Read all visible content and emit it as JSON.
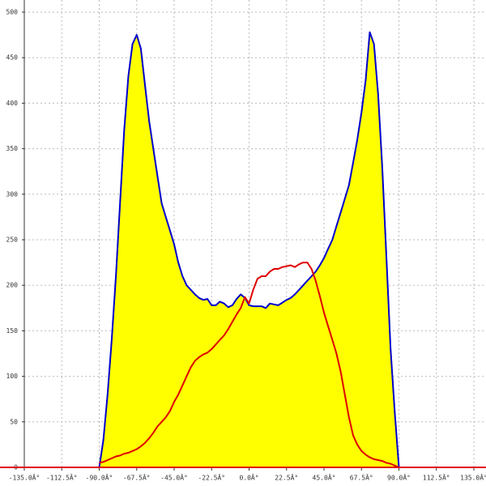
{
  "chart_data": {
    "type": "area-line",
    "x": [
      -90,
      -87.5,
      -85,
      -82.5,
      -80,
      -77.5,
      -75,
      -72.5,
      -70,
      -67.5,
      -65,
      -62.5,
      -60,
      -57.5,
      -55,
      -52.5,
      -50,
      -47.5,
      -45,
      -42.5,
      -40,
      -37.5,
      -35,
      -32.5,
      -30,
      -27.5,
      -25,
      -22.5,
      -20,
      -17.5,
      -15,
      -12.5,
      -10,
      -7.5,
      -5,
      -2.5,
      0,
      2.5,
      5,
      7.5,
      10,
      12.5,
      15,
      17.5,
      20,
      22.5,
      25,
      27.5,
      30,
      32.5,
      35,
      37.5,
      40,
      42.5,
      45,
      47.5,
      50,
      52.5,
      55,
      57.5,
      60,
      62.5,
      65,
      67.5,
      70,
      72.5,
      75,
      77.5,
      80,
      82.5,
      85,
      87.5,
      90
    ],
    "series": [
      {
        "color": "#0000cc",
        "fill": "#ffff00",
        "values": [
          0,
          30,
          80,
          140,
          210,
          290,
          370,
          430,
          465,
          475,
          460,
          420,
          380,
          350,
          320,
          290,
          275,
          260,
          245,
          225,
          210,
          200,
          195,
          190,
          186,
          184,
          185,
          178,
          178,
          182,
          180,
          176,
          178,
          185,
          190,
          186,
          178,
          177,
          177,
          177,
          175,
          180,
          179,
          178,
          181,
          184,
          186,
          190,
          195,
          200,
          205,
          210,
          215,
          222,
          230,
          240,
          250,
          265,
          280,
          295,
          310,
          335,
          360,
          390,
          425,
          478,
          465,
          410,
          330,
          230,
          130,
          60,
          0
        ]
      },
      {
        "color": "#e00000",
        "values": [
          5,
          6,
          8,
          10,
          12,
          13,
          15,
          16,
          18,
          20,
          23,
          27,
          32,
          38,
          45,
          50,
          55,
          62,
          72,
          80,
          90,
          100,
          110,
          117,
          121,
          124,
          126,
          130,
          135,
          140,
          145,
          152,
          160,
          168,
          175,
          187,
          180,
          195,
          207,
          210,
          210,
          215,
          218,
          218,
          220,
          221,
          222,
          220,
          223,
          225,
          225,
          218,
          205,
          188,
          170,
          155,
          140,
          125,
          105,
          80,
          55,
          35,
          25,
          18,
          14,
          11,
          9,
          8,
          7,
          5,
          4,
          2,
          0
        ]
      }
    ],
    "xlim": [
      -135,
      135
    ],
    "xticks": [
      {
        "value": -135,
        "label": "-135.0Â°"
      },
      {
        "value": -112.5,
        "label": "-112.5Â°"
      },
      {
        "value": -90,
        "label": "-90.0Â°"
      },
      {
        "value": -67.5,
        "label": "-67.5Â°"
      },
      {
        "value": -45,
        "label": "-45.0Â°"
      },
      {
        "value": -22.5,
        "label": "-22.5Â°"
      },
      {
        "value": 0,
        "label": "0.0Â°"
      },
      {
        "value": 22.5,
        "label": "22.5Â°"
      },
      {
        "value": 45,
        "label": "45.0Â°"
      },
      {
        "value": 67.5,
        "label": "67.5Â°"
      },
      {
        "value": 90,
        "label": "90.0Â°"
      },
      {
        "value": 112.5,
        "label": "112.5Â°"
      },
      {
        "value": 135,
        "label": "135.0Â°"
      }
    ],
    "ylim": [
      0,
      500
    ],
    "yticks": [
      0,
      50,
      100,
      150,
      200,
      250,
      300,
      350,
      400,
      450,
      500
    ],
    "grid": true,
    "x_axis_color": "#e00000"
  }
}
